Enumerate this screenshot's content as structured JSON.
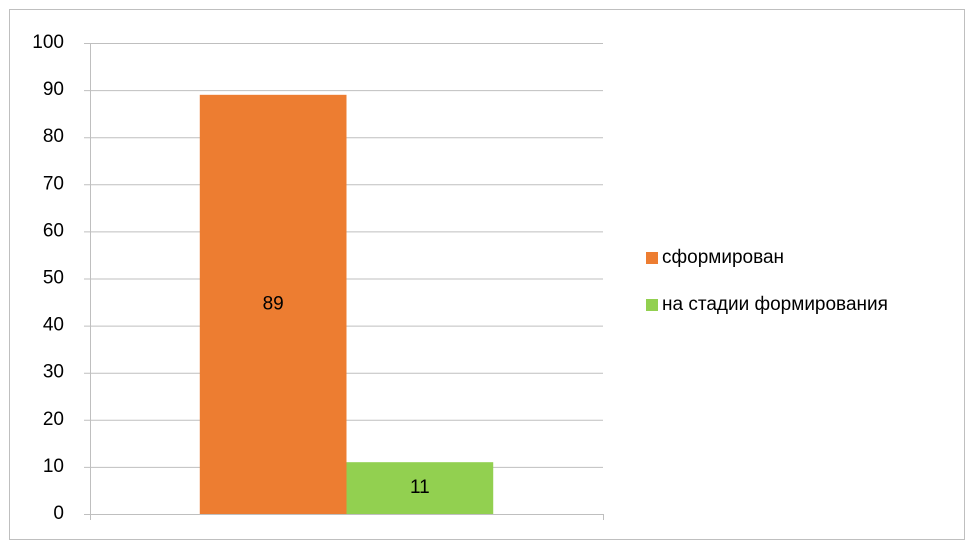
{
  "chart_data": {
    "type": "bar",
    "categories": [
      null
    ],
    "series": [
      {
        "name": "сформирован",
        "color": "#ed7d31",
        "values": [
          89
        ]
      },
      {
        "name": "на стадии формирования",
        "color": "#92d050",
        "values": [
          11
        ]
      }
    ],
    "ylim": [
      0,
      100
    ],
    "yticks": [
      0,
      10,
      20,
      30,
      40,
      50,
      60,
      70,
      80,
      90,
      100
    ],
    "grid": true,
    "legend": "right"
  }
}
